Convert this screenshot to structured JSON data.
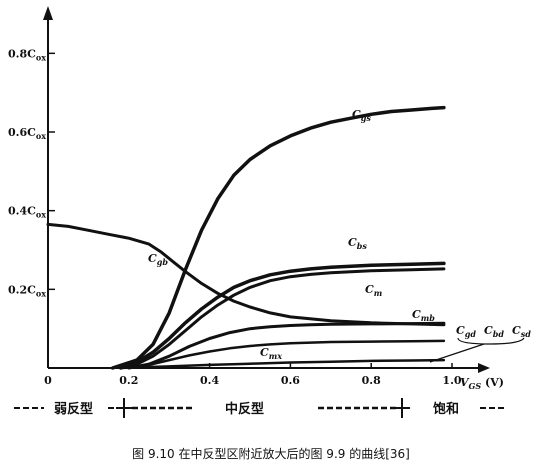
{
  "chart_data": {
    "type": "line",
    "xlabel": "V_GS (V)",
    "xlim": [
      0,
      1.0
    ],
    "ylim": [
      0,
      0.9
    ],
    "x_ticks": [
      "0",
      "0.2",
      "0.4",
      "0.6",
      "0.8",
      "1.0"
    ],
    "y_ticks": [
      {
        "value": 0.8,
        "label": "0.8C_ox"
      },
      {
        "value": 0.6,
        "label": "0.6C_ox"
      },
      {
        "value": 0.4,
        "label": "0.4C_ox"
      },
      {
        "value": 0.2,
        "label": "0.2C_ox"
      }
    ],
    "series": [
      {
        "name": "C_gs",
        "width": 3.5,
        "x": [
          0.16,
          0.22,
          0.26,
          0.3,
          0.34,
          0.38,
          0.42,
          0.46,
          0.5,
          0.55,
          0.6,
          0.65,
          0.7,
          0.75,
          0.8,
          0.85,
          0.9,
          0.95,
          0.98
        ],
        "y": [
          0.0,
          0.02,
          0.06,
          0.14,
          0.25,
          0.35,
          0.43,
          0.49,
          0.53,
          0.565,
          0.59,
          0.61,
          0.625,
          0.635,
          0.645,
          0.652,
          0.656,
          0.66,
          0.662
        ]
      },
      {
        "name": "C_gb",
        "width": 3.0,
        "x": [
          0.0,
          0.05,
          0.1,
          0.15,
          0.2,
          0.25,
          0.28,
          0.31,
          0.34,
          0.38,
          0.42,
          0.46,
          0.5,
          0.55,
          0.6,
          0.7,
          0.8,
          0.9,
          0.98
        ],
        "y": [
          0.365,
          0.36,
          0.35,
          0.34,
          0.33,
          0.315,
          0.295,
          0.27,
          0.245,
          0.215,
          0.19,
          0.17,
          0.155,
          0.14,
          0.13,
          0.12,
          0.115,
          0.112,
          0.11
        ]
      },
      {
        "name": "C_bs",
        "width": 3.5,
        "x": [
          0.18,
          0.22,
          0.26,
          0.3,
          0.34,
          0.38,
          0.42,
          0.46,
          0.5,
          0.55,
          0.6,
          0.65,
          0.7,
          0.8,
          0.9,
          0.98
        ],
        "y": [
          0.0,
          0.015,
          0.04,
          0.075,
          0.115,
          0.15,
          0.18,
          0.205,
          0.222,
          0.237,
          0.246,
          0.252,
          0.256,
          0.261,
          0.264,
          0.266
        ]
      },
      {
        "name": "C_m",
        "width": 3.0,
        "x": [
          0.18,
          0.22,
          0.26,
          0.3,
          0.34,
          0.38,
          0.42,
          0.46,
          0.5,
          0.55,
          0.6,
          0.65,
          0.7,
          0.8,
          0.9,
          0.98
        ],
        "y": [
          0.0,
          0.01,
          0.03,
          0.06,
          0.095,
          0.13,
          0.16,
          0.185,
          0.205,
          0.222,
          0.232,
          0.238,
          0.242,
          0.247,
          0.25,
          0.252
        ]
      },
      {
        "name": "C_mb",
        "width": 3.0,
        "x": [
          0.2,
          0.25,
          0.3,
          0.35,
          0.4,
          0.45,
          0.5,
          0.55,
          0.6,
          0.65,
          0.7,
          0.8,
          0.9,
          0.98
        ],
        "y": [
          0.0,
          0.01,
          0.03,
          0.055,
          0.075,
          0.09,
          0.1,
          0.105,
          0.108,
          0.11,
          0.111,
          0.112,
          0.113,
          0.114
        ]
      },
      {
        "name": "C_mx",
        "width": 2.5,
        "x": [
          0.2,
          0.25,
          0.3,
          0.35,
          0.4,
          0.45,
          0.5,
          0.55,
          0.6,
          0.7,
          0.8,
          0.9,
          0.98
        ],
        "y": [
          0.0,
          0.008,
          0.02,
          0.032,
          0.042,
          0.05,
          0.056,
          0.06,
          0.063,
          0.066,
          0.067,
          0.068,
          0.069
        ]
      },
      {
        "name": "C_gd_C_bd_C_sd",
        "width": 2.5,
        "x": [
          0.18,
          0.3,
          0.4,
          0.5,
          0.6,
          0.7,
          0.8,
          0.9,
          0.98
        ],
        "y": [
          0.0,
          0.004,
          0.008,
          0.011,
          0.014,
          0.016,
          0.018,
          0.019,
          0.02
        ]
      }
    ],
    "curve_labels": [
      {
        "id": "gs",
        "main": "C",
        "sub": "gs"
      },
      {
        "id": "gb",
        "main": "C",
        "sub": "gb"
      },
      {
        "id": "bs",
        "main": "C",
        "sub": "bs"
      },
      {
        "id": "m",
        "main": "C",
        "sub": "m"
      },
      {
        "id": "mb",
        "main": "C",
        "sub": "mb"
      },
      {
        "id": "mx",
        "main": "C",
        "sub": "mx"
      },
      {
        "id": "gd",
        "main": "C",
        "sub": "gd"
      },
      {
        "id": "bd",
        "main": "C",
        "sub": "bd"
      },
      {
        "id": "sd",
        "main": "C",
        "sub": "sd"
      }
    ],
    "regions": {
      "weak": "弱反型",
      "moderate": "中反型",
      "strong": "饱和"
    },
    "axis_unit": "(V)"
  },
  "caption": "图 9.10   在中反型区附近放大后的图 9.9 的曲线[36]"
}
